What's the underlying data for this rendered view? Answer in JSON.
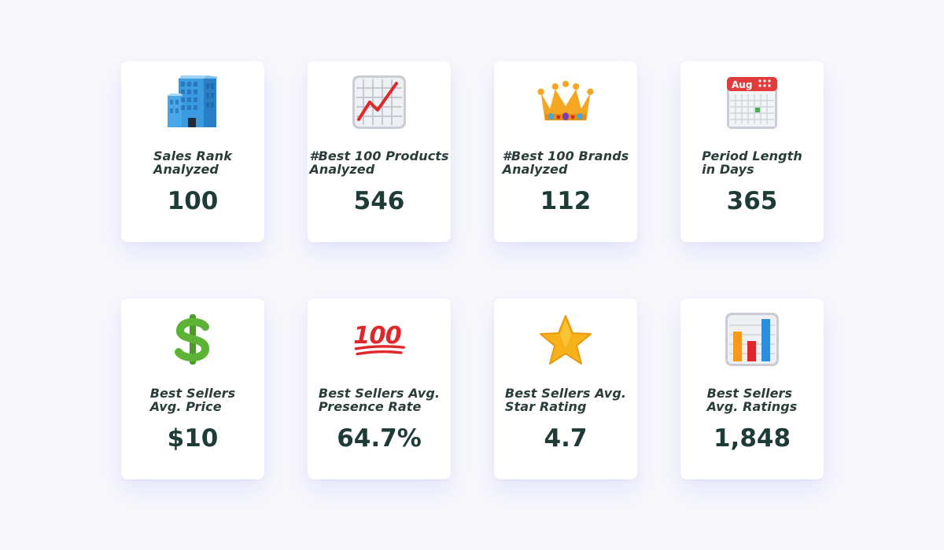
{
  "cards": [
    {
      "icon": "office-building-icon",
      "label": "Sales Rank\nAnalyzed",
      "value": "100"
    },
    {
      "icon": "chart-increasing-icon",
      "label": "#Best 100 Products\nAnalyzed",
      "value": "546"
    },
    {
      "icon": "crown-icon",
      "label": "#Best 100 Brands\nAnalyzed",
      "value": "112"
    },
    {
      "icon": "calendar-icon",
      "label": "Period Length\nin Days",
      "value": "365",
      "icon_text": "Aug"
    },
    {
      "icon": "dollar-sign-icon",
      "label": "Best Sellers\nAvg. Price",
      "value": "$10"
    },
    {
      "icon": "hundred-points-icon",
      "label": "Best Sellers Avg.\nPresence Rate",
      "value": "64.7%",
      "icon_text": "100"
    },
    {
      "icon": "star-icon",
      "label": "Best Sellers Avg.\nStar Rating",
      "value": "4.7"
    },
    {
      "icon": "bar-chart-icon",
      "label": "Best Sellers\nAvg. Ratings",
      "value": "1,848"
    }
  ],
  "colors": {
    "background": "#f7f7fc",
    "card": "#ffffff",
    "text": "#1f3b37",
    "shadow": "#8c8cff"
  }
}
